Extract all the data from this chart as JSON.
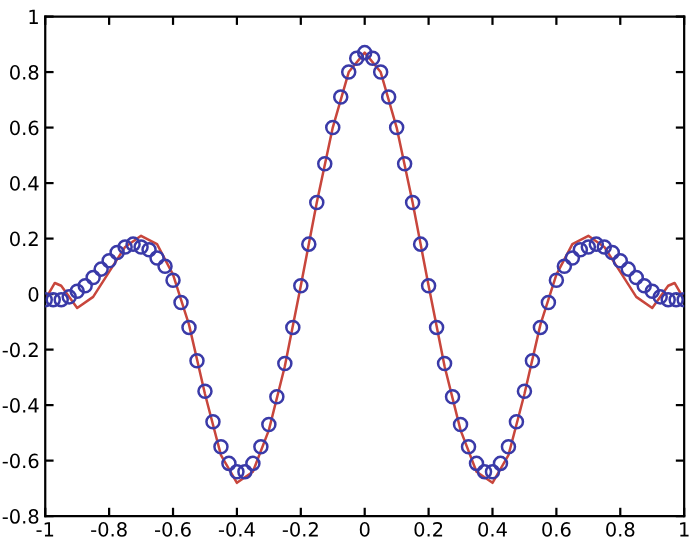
{
  "chart_data": {
    "type": "line",
    "xlim": [
      -1,
      1
    ],
    "ylim": [
      -0.8,
      1
    ],
    "xticks": [
      -1,
      -0.8,
      -0.6,
      -0.4,
      -0.2,
      0,
      0.2,
      0.4,
      0.6,
      0.8,
      1
    ],
    "yticks": [
      -0.8,
      -0.6,
      -0.4,
      -0.2,
      0,
      0.2,
      0.4,
      0.6,
      0.8,
      1
    ],
    "grid": false,
    "legend": false,
    "series": [
      {
        "color": "#c8463c",
        "marker": "none",
        "line_style": "solid",
        "x": [
          -1,
          -0.97,
          -0.95,
          -0.9,
          -0.85,
          -0.8,
          -0.75,
          -0.7,
          -0.65,
          -0.6,
          -0.55,
          -0.5,
          -0.45,
          -0.4,
          -0.35,
          -0.3,
          -0.25,
          -0.2,
          -0.15,
          -0.1,
          -0.05,
          0,
          0.05,
          0.1,
          0.15,
          0.2,
          0.25,
          0.3,
          0.35,
          0.4,
          0.45,
          0.5,
          0.55,
          0.6,
          0.65,
          0.7,
          0.75,
          0.8,
          0.85,
          0.9,
          0.95,
          0.97,
          1
        ],
        "values": [
          -0.02,
          0.04,
          0.03,
          -0.05,
          -0.01,
          0.08,
          0.17,
          0.21,
          0.18,
          0.07,
          -0.11,
          -0.36,
          -0.58,
          -0.68,
          -0.64,
          -0.49,
          -0.26,
          0.03,
          0.33,
          0.6,
          0.8,
          0.87,
          0.8,
          0.6,
          0.33,
          0.03,
          -0.26,
          -0.49,
          -0.64,
          -0.68,
          -0.58,
          -0.36,
          -0.11,
          0.07,
          0.18,
          0.21,
          0.17,
          0.08,
          -0.01,
          -0.05,
          0.03,
          0.04,
          -0.02
        ]
      },
      {
        "type": "scatter",
        "color": "#3a3aa8",
        "marker": "circle",
        "x": [
          -1,
          -0.975,
          -0.95,
          -0.925,
          -0.9,
          -0.875,
          -0.85,
          -0.825,
          -0.8,
          -0.775,
          -0.75,
          -0.725,
          -0.7,
          -0.675,
          -0.65,
          -0.625,
          -0.6,
          -0.575,
          -0.55,
          -0.525,
          -0.5,
          -0.475,
          -0.45,
          -0.425,
          -0.4,
          -0.375,
          -0.35,
          -0.325,
          -0.3,
          -0.275,
          -0.25,
          -0.225,
          -0.2,
          -0.175,
          -0.15,
          -0.125,
          -0.1,
          -0.075,
          -0.05,
          -0.025,
          0,
          0.025,
          0.05,
          0.075,
          0.1,
          0.125,
          0.15,
          0.175,
          0.2,
          0.225,
          0.25,
          0.275,
          0.3,
          0.325,
          0.35,
          0.375,
          0.4,
          0.425,
          0.45,
          0.475,
          0.5,
          0.525,
          0.55,
          0.575,
          0.6,
          0.625,
          0.65,
          0.675,
          0.7,
          0.725,
          0.75,
          0.775,
          0.8,
          0.825,
          0.85,
          0.875,
          0.9,
          0.925,
          0.95,
          0.975,
          1
        ],
        "values": [
          -0.02,
          -0.02,
          -0.02,
          -0.01,
          0.01,
          0.03,
          0.06,
          0.09,
          0.12,
          0.15,
          0.17,
          0.18,
          0.17,
          0.16,
          0.13,
          0.1,
          0.05,
          -0.03,
          -0.12,
          -0.24,
          -0.35,
          -0.46,
          -0.55,
          -0.61,
          -0.64,
          -0.64,
          -0.61,
          -0.55,
          -0.47,
          -0.37,
          -0.25,
          -0.12,
          0.03,
          0.18,
          0.33,
          0.47,
          0.6,
          0.71,
          0.8,
          0.85,
          0.87,
          0.85,
          0.8,
          0.71,
          0.6,
          0.47,
          0.33,
          0.18,
          0.03,
          -0.12,
          -0.25,
          -0.37,
          -0.47,
          -0.55,
          -0.61,
          -0.64,
          -0.64,
          -0.61,
          -0.55,
          -0.46,
          -0.35,
          -0.24,
          -0.12,
          -0.03,
          0.05,
          0.1,
          0.13,
          0.16,
          0.17,
          0.18,
          0.17,
          0.15,
          0.12,
          0.09,
          0.06,
          0.03,
          0.01,
          -0.01,
          -0.02,
          -0.02,
          -0.02
        ]
      }
    ]
  }
}
